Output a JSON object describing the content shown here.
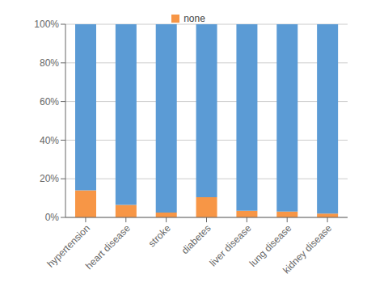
{
  "chart_data": {
    "type": "bar",
    "stacked": true,
    "categories": [
      "hypertension",
      "heart disease",
      "stroke",
      "diabetes",
      "liver disease",
      "lung disease",
      "kidney disease"
    ],
    "series": [
      {
        "name": "none",
        "color": "#f79646",
        "values": [
          14,
          6.5,
          2.5,
          10.5,
          3.5,
          3,
          2
        ]
      },
      {
        "color": "#5b9bd5",
        "values": [
          86,
          93.5,
          97.5,
          89.5,
          96.5,
          97,
          98
        ]
      }
    ],
    "ylim": [
      0,
      100
    ],
    "yticks": [
      {
        "value": 0,
        "label": "0%"
      },
      {
        "value": 20,
        "label": "20%"
      },
      {
        "value": 40,
        "label": "40%"
      },
      {
        "value": 60,
        "label": "60%"
      },
      {
        "value": 80,
        "label": "80%"
      },
      {
        "value": 100,
        "label": "100%"
      }
    ],
    "grid": true,
    "legend": "top"
  }
}
